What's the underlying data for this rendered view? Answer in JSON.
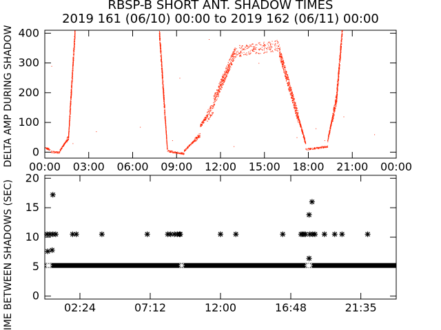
{
  "header": {
    "title": "RBSP-B SHORT ANT. SHADOW TIMES",
    "subtitle": "2019 161 (06/10) 00:00 to 2019 162 (06/11) 00:00"
  },
  "colors": {
    "top_points": "#ff2200",
    "bottom_points": "#000000",
    "axes": "#000000"
  },
  "chart_data": [
    {
      "type": "scatter",
      "title": "",
      "xlabel": "",
      "ylabel": "DELTA AMP DURING SHADOW",
      "xlim": [
        0,
        24
      ],
      "ylim": [
        -20,
        410
      ],
      "x_ticks": [
        0,
        3,
        6,
        9,
        12,
        15,
        18,
        21,
        24
      ],
      "x_tick_labels": [
        "00:00",
        "03:00",
        "06:00",
        "09:00",
        "12:00",
        "15:00",
        "18:00",
        "21:00",
        "00:00"
      ],
      "y_ticks": [
        0,
        100,
        200,
        300,
        400
      ],
      "y_tick_labels": [
        "0",
        "100",
        "200",
        "300",
        "400"
      ],
      "series": [
        {
          "segments": [
            {
              "x0": 0.0,
              "x1": 0.35,
              "y0": 15,
              "y1": 10
            },
            {
              "x0": 0.35,
              "x1": 1.0,
              "y0": 2,
              "y1": 0
            },
            {
              "x0": 1.0,
              "x1": 1.6,
              "y0": 5,
              "y1": 50
            },
            {
              "x0": 1.6,
              "x1": 2.05,
              "y0": 50,
              "y1": 410
            },
            {
              "x0": 7.8,
              "x1": 8.35,
              "y0": 410,
              "y1": 10
            },
            {
              "x0": 8.35,
              "x1": 9.5,
              "y0": 5,
              "y1": -5
            },
            {
              "x0": 9.5,
              "x1": 10.6,
              "y0": 5,
              "y1": 60
            },
            {
              "x0": 10.6,
              "x1": 11.5,
              "y0": 90,
              "y1": 150
            },
            {
              "x0": 11.5,
              "x1": 13.0,
              "y0": 170,
              "y1": 340
            },
            {
              "x0": 13.0,
              "x1": 16.0,
              "y0": 340,
              "y1": 360
            },
            {
              "x0": 16.0,
              "x1": 17.8,
              "y0": 340,
              "y1": 30
            },
            {
              "x0": 17.8,
              "x1": 19.3,
              "y0": 10,
              "y1": 20
            },
            {
              "x0": 19.3,
              "x1": 19.9,
              "y0": 40,
              "y1": 180
            },
            {
              "x0": 19.9,
              "x1": 20.3,
              "y0": 180,
              "y1": 410
            }
          ],
          "outliers": [
            [
              0.45,
              290
            ],
            [
              1.9,
              30
            ],
            [
              3.5,
              70
            ],
            [
              6.5,
              85
            ],
            [
              8.7,
              40
            ],
            [
              9.2,
              250
            ],
            [
              11.2,
              380
            ],
            [
              12.9,
              20
            ],
            [
              14.6,
              300
            ],
            [
              17.2,
              50
            ],
            [
              18.5,
              80
            ],
            [
              19.1,
              40
            ],
            [
              20.4,
              120
            ],
            [
              22.5,
              60
            ]
          ]
        }
      ]
    },
    {
      "type": "scatter",
      "title": "",
      "xlabel": "",
      "ylabel": "TIME BETWEEN SHADOWS (SEC)",
      "xlim": [
        0,
        24
      ],
      "ylim": [
        -0.5,
        20.5
      ],
      "x_ticks": [
        2.4,
        7.2,
        12.0,
        16.8,
        21.583
      ],
      "x_tick_labels": [
        "02:24",
        "07:12",
        "12:00",
        "16:48",
        "21:35"
      ],
      "y_ticks": [
        0,
        5,
        10,
        15,
        20
      ],
      "y_tick_labels": [
        "0",
        "5",
        "10",
        "15",
        "20"
      ],
      "series": [
        {
          "band": {
            "x0": 0.0,
            "x1": 24.0,
            "y": 5.2
          },
          "points": [
            [
              0.15,
              10.5
            ],
            [
              0.35,
              10.5
            ],
            [
              0.55,
              10.5
            ],
            [
              0.75,
              10.5
            ],
            [
              0.2,
              7.6
            ],
            [
              0.5,
              7.8
            ],
            [
              0.55,
              17.2
            ],
            [
              0.2,
              5.2
            ],
            [
              0.3,
              5.2
            ],
            [
              1.9,
              10.5
            ],
            [
              2.15,
              10.5
            ],
            [
              3.9,
              10.5
            ],
            [
              7.0,
              10.5
            ],
            [
              8.4,
              10.5
            ],
            [
              8.6,
              10.5
            ],
            [
              8.85,
              10.5
            ],
            [
              9.05,
              10.5
            ],
            [
              9.2,
              10.5
            ],
            [
              9.25,
              10.5
            ],
            [
              9.35,
              5.2
            ],
            [
              12.0,
              10.5
            ],
            [
              13.05,
              10.5
            ],
            [
              16.25,
              10.5
            ],
            [
              17.5,
              10.5
            ],
            [
              17.6,
              10.5
            ],
            [
              17.7,
              10.5
            ],
            [
              17.8,
              10.5
            ],
            [
              18.05,
              13.8
            ],
            [
              18.25,
              16.0
            ],
            [
              18.05,
              6.4
            ],
            [
              18.1,
              10.5
            ],
            [
              18.3,
              10.5
            ],
            [
              18.45,
              10.5
            ],
            [
              17.95,
              5.2
            ],
            [
              18.1,
              5.2
            ],
            [
              19.1,
              10.5
            ],
            [
              19.8,
              10.5
            ],
            [
              20.3,
              10.5
            ],
            [
              22.05,
              10.5
            ]
          ]
        }
      ]
    }
  ]
}
